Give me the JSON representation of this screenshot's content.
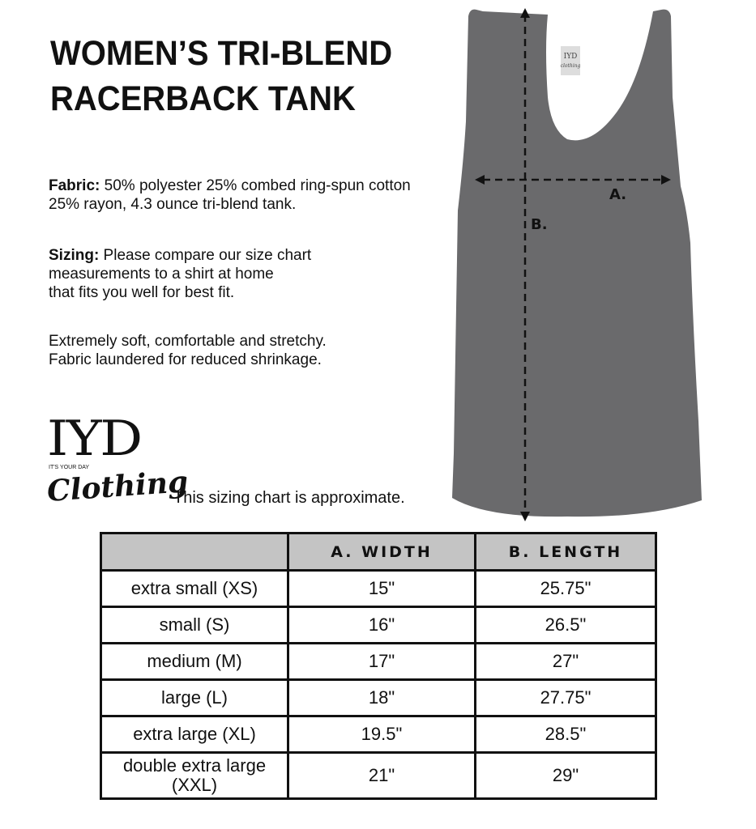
{
  "title_line1": "WOMEN’S TRI-BLEND",
  "title_line2": "RACERBACK TANK",
  "fabric_label": "Fabric:",
  "fabric_text_1": " 50% polyester 25% combed ring-spun cotton",
  "fabric_text_2": "25% rayon, 4.3 ounce tri-blend tank.",
  "sizing_label": "Sizing:",
  "sizing_text_1": " Please compare our size chart",
  "sizing_text_2": "measurements to a shirt at home",
  "sizing_text_3": "that fits you well for best fit.",
  "feature_1": "Extremely soft, comfortable and stretchy.",
  "feature_2": "Fabric laundered for reduced shrinkage.",
  "logo": {
    "main": "IYD",
    "small": "IT'S YOUR DAY",
    "script": "Clothing"
  },
  "tag": {
    "main": "IYD",
    "sub": "clothing"
  },
  "disclaimer": "This sizing chart is approximate.",
  "diagram_labels": {
    "a": "A.",
    "b": "B."
  },
  "colors": {
    "tank": "#6a6a6c",
    "header_bg": "#c4c4c4"
  },
  "table": {
    "headers": [
      "",
      "A. WIDTH",
      "B. LENGTH"
    ],
    "rows": [
      [
        "extra small (XS)",
        "15\"",
        "25.75\""
      ],
      [
        "small (S)",
        "16\"",
        "26.5\""
      ],
      [
        "medium (M)",
        "17\"",
        "27\""
      ],
      [
        "large (L)",
        "18\"",
        "27.75\""
      ],
      [
        "extra large (XL)",
        "19.5\"",
        "28.5\""
      ],
      [
        "double extra large (XXL)",
        "21\"",
        "29\""
      ]
    ]
  }
}
